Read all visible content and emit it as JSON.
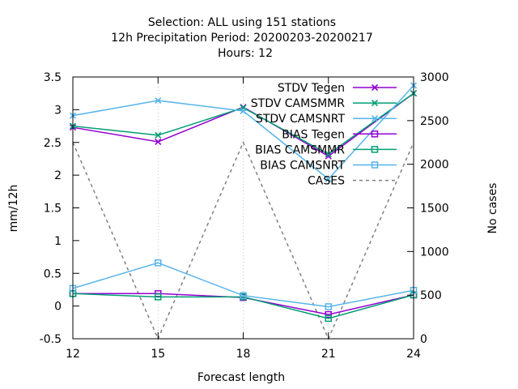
{
  "chart_data": {
    "type": "line",
    "title_lines": [
      "Selection: ALL using   151 stations",
      "12h Precipitation   Period: 20200203-20200217",
      "Hours:  12"
    ],
    "xlabel": "Forecast length",
    "ylabel": "mm/12h",
    "y2label": "No cases",
    "x": [
      12,
      15,
      18,
      21,
      24
    ],
    "xticks": [
      12,
      15,
      18,
      21,
      24
    ],
    "xlim": [
      12,
      24
    ],
    "ylim": [
      -0.5,
      3.5
    ],
    "yticks": [
      -0.5,
      0,
      0.5,
      1,
      1.5,
      2,
      2.5,
      3,
      3.5
    ],
    "y2lim": [
      0,
      3000
    ],
    "y2ticks": [
      0,
      500,
      1000,
      1500,
      2000,
      2500,
      3000
    ],
    "legend_position": "top-right",
    "grid": true,
    "series": [
      {
        "name": "STDV Tegen",
        "color": "#9400d3",
        "marker": "x",
        "axis": "y1",
        "values": [
          2.73,
          2.51,
          3.04,
          2.29,
          3.25
        ]
      },
      {
        "name": "STDV CAMSMMR",
        "color": "#009e73",
        "marker": "x",
        "axis": "y1",
        "values": [
          2.75,
          2.61,
          3.03,
          2.32,
          3.25
        ]
      },
      {
        "name": "STDV CAMSNRT",
        "color": "#56b4e9",
        "marker": "x",
        "axis": "y1",
        "values": [
          2.91,
          3.14,
          2.98,
          1.94,
          3.37
        ]
      },
      {
        "name": "BIAS Tegen",
        "color": "#9400d3",
        "marker": "square",
        "axis": "y1",
        "values": [
          0.19,
          0.19,
          0.13,
          -0.13,
          0.17
        ]
      },
      {
        "name": "BIAS CAMSMMR",
        "color": "#009e73",
        "marker": "square",
        "axis": "y1",
        "values": [
          0.19,
          0.14,
          0.14,
          -0.19,
          0.17
        ]
      },
      {
        "name": "BIAS CAMSNRT",
        "color": "#56b4e9",
        "marker": "square",
        "axis": "y1",
        "values": [
          0.27,
          0.66,
          0.16,
          -0.01,
          0.24
        ]
      },
      {
        "name": "CASES",
        "color": "#808080",
        "marker": "none",
        "dashed": true,
        "axis": "y2",
        "values": [
          2250,
          0,
          2250,
          0,
          2250
        ]
      }
    ]
  }
}
